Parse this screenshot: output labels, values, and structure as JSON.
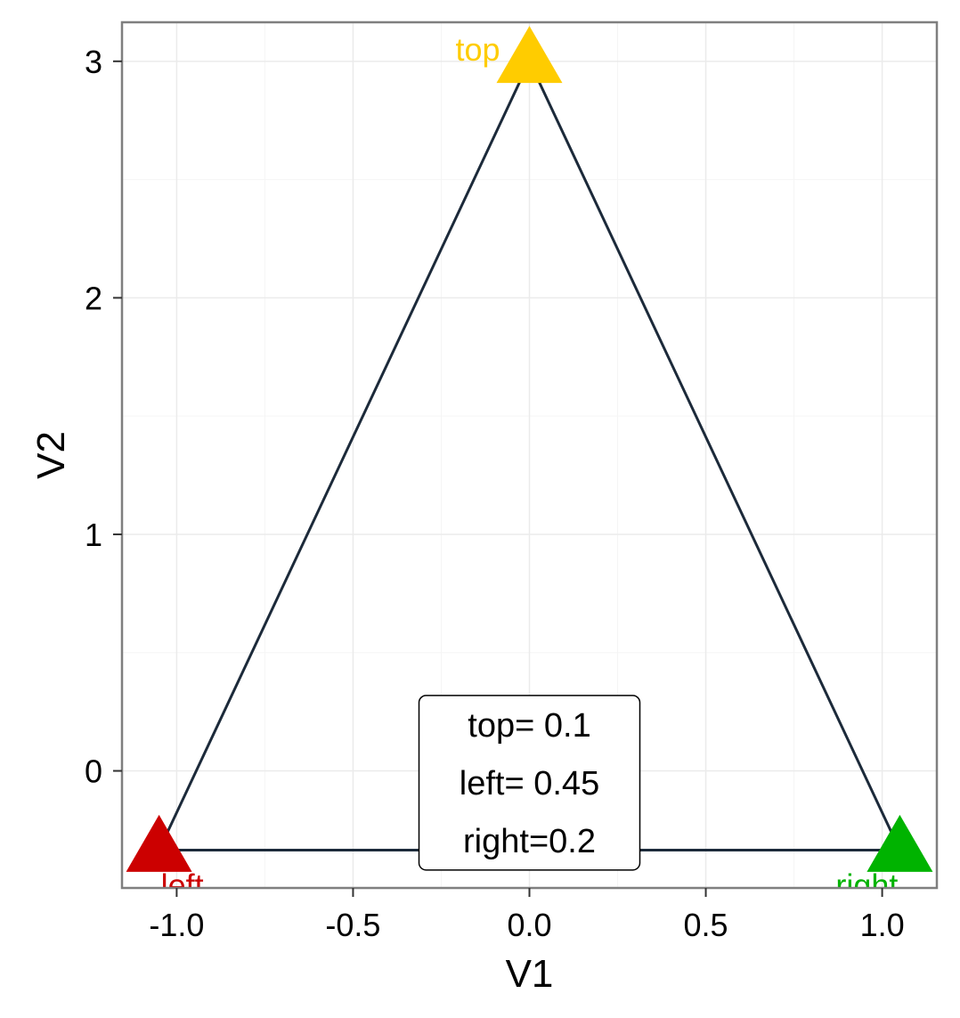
{
  "chart_data": {
    "type": "scatter",
    "title": "",
    "xlabel": "V1",
    "ylabel": "V2",
    "xlim": [
      -1.155,
      1.155
    ],
    "ylim": [
      -0.495,
      3.165
    ],
    "x_ticks": [
      -1.0,
      -0.5,
      0.0,
      0.5,
      1.0
    ],
    "x_tick_labels": [
      "-1.0",
      "-0.5",
      "0.0",
      "0.5",
      "1.0"
    ],
    "y_ticks": [
      0,
      1,
      2,
      3
    ],
    "y_tick_labels": [
      "0",
      "1",
      "2",
      "3"
    ],
    "grid": true,
    "triangle_outline": [
      {
        "x": -1.05,
        "y": -0.335
      },
      {
        "x": 0.0,
        "y": 3.0
      },
      {
        "x": 1.05,
        "y": -0.335
      }
    ],
    "points": [
      {
        "name": "top",
        "label": "top",
        "x": 0.0,
        "y": 3.0,
        "color": "#ffcc00"
      },
      {
        "name": "left",
        "label": "left",
        "x": -1.05,
        "y": -0.335,
        "color": "#cc0000"
      },
      {
        "name": "right",
        "label": "right",
        "x": 1.05,
        "y": -0.335,
        "color": "#00b300"
      }
    ],
    "annotation": {
      "lines": [
        "top= 0.1",
        "left= 0.45",
        "right=0.2"
      ],
      "x": 0.0,
      "y": -0.05
    },
    "colors": {
      "outline": "#1c2a3a",
      "panel_border": "#7f7f7f",
      "grid_major": "#ebebeb",
      "grid_minor": "#f5f5f5"
    }
  }
}
